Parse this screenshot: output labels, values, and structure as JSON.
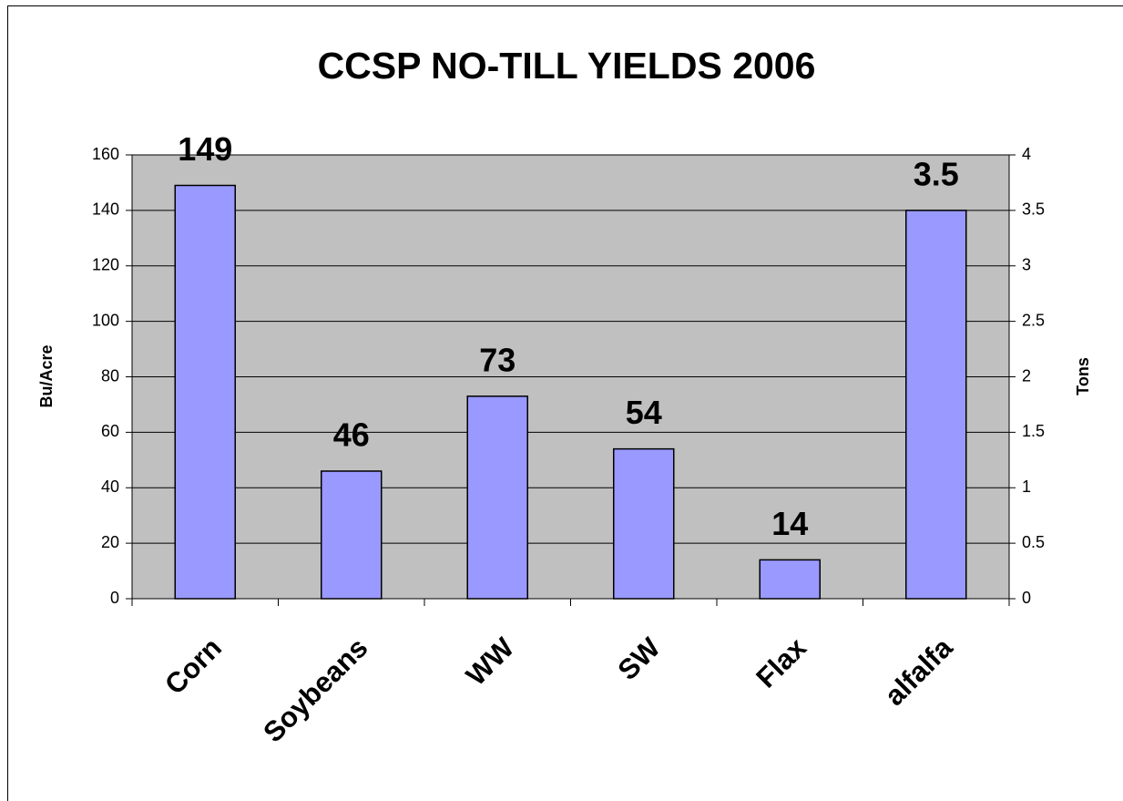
{
  "chart_data": {
    "type": "bar",
    "title": "CCSP NO-TILL YIELDS 2006",
    "y_label": "Bu/Acre",
    "y2_label": "Tons",
    "categories": [
      "Corn",
      "Soybeans",
      "WW",
      "SW",
      "Flax",
      "alfalfa"
    ],
    "series": [
      {
        "color": "#9999ff",
        "values": [
          149,
          46,
          73,
          54,
          14,
          null
        ]
      },
      {
        "color": "#9999ff",
        "axis": "y2",
        "values": [
          null,
          null,
          null,
          null,
          null,
          3.5
        ]
      }
    ],
    "ylim": [
      0,
      160
    ],
    "yticks": [
      0,
      20,
      40,
      60,
      80,
      100,
      120,
      140,
      160
    ],
    "y2lim": [
      0,
      4
    ],
    "y2ticks": [
      0,
      0.5,
      1,
      1.5,
      2,
      2.5,
      3,
      3.5,
      4
    ],
    "grid": true
  }
}
